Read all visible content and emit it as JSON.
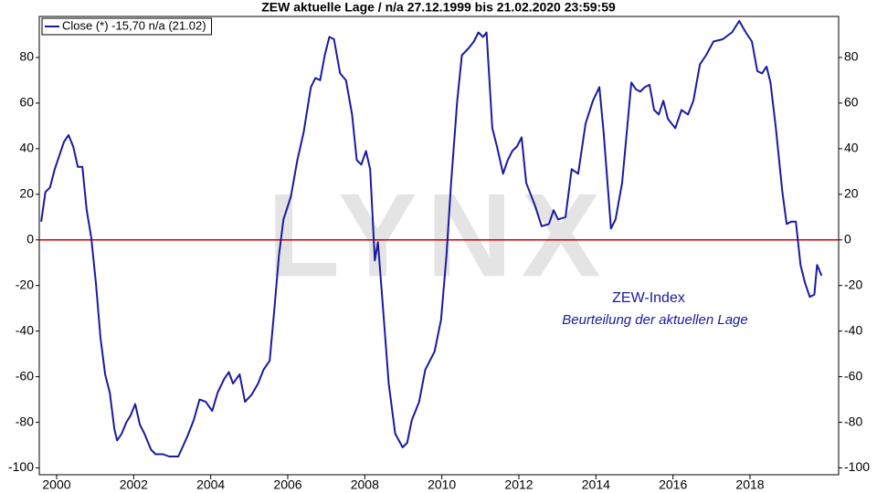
{
  "chart_data": {
    "type": "line",
    "title": "ZEW aktuelle Lage / n/a 27.12.1999 bis 21.02.2020 23:59:59",
    "watermark": "LYNX",
    "annotations": [
      "ZEW-Index",
      "Beurteilung der aktuellen Lage"
    ],
    "x": [
      1999.6,
      1999.71,
      1999.83,
      1999.95,
      2000.19,
      2000.31,
      2000.43,
      2000.55,
      2000.67,
      2000.78,
      2000.9,
      2001.02,
      2001.14,
      2001.26,
      2001.38,
      2001.5,
      2001.57,
      2001.69,
      2001.81,
      2001.92,
      2002.04,
      2002.16,
      2002.28,
      2002.45,
      2002.57,
      2002.76,
      2002.92,
      2003.16,
      2003.4,
      2003.56,
      2003.71,
      2003.87,
      2004.04,
      2004.18,
      2004.35,
      2004.47,
      2004.58,
      2004.75,
      2004.89,
      2005.06,
      2005.23,
      2005.37,
      2005.53,
      2005.65,
      2005.77,
      2005.89,
      2006.08,
      2006.25,
      2006.41,
      2006.6,
      2006.72,
      2006.84,
      2006.96,
      2007.08,
      2007.2,
      2007.36,
      2007.51,
      2007.67,
      2007.79,
      2007.91,
      2008.03,
      2008.14,
      2008.26,
      2008.34,
      2008.46,
      2008.62,
      2008.79,
      2008.98,
      2009.1,
      2009.22,
      2009.41,
      2009.57,
      2009.81,
      2009.98,
      2010.12,
      2010.24,
      2010.4,
      2010.52,
      2010.69,
      2010.83,
      2010.95,
      2011.07,
      2011.16,
      2011.31,
      2011.43,
      2011.59,
      2011.71,
      2011.83,
      2011.95,
      2012.07,
      2012.19,
      2012.42,
      2012.59,
      2012.78,
      2012.9,
      2013.02,
      2013.21,
      2013.37,
      2013.54,
      2013.73,
      2013.92,
      2014.09,
      2014.2,
      2014.39,
      2014.51,
      2014.68,
      2014.92,
      2015.04,
      2015.15,
      2015.27,
      2015.39,
      2015.51,
      2015.63,
      2015.75,
      2015.87,
      2016.06,
      2016.22,
      2016.39,
      2016.53,
      2016.7,
      2016.86,
      2017.05,
      2017.29,
      2017.53,
      2017.72,
      2017.89,
      2018.05,
      2018.19,
      2018.31,
      2018.43,
      2018.53,
      2018.67,
      2018.84,
      2018.95,
      2019.07,
      2019.19,
      2019.31,
      2019.43,
      2019.55,
      2019.67,
      2019.74,
      2019.86
    ],
    "series": [
      {
        "name": "Close (*) -15,70 n/a (21.02)",
        "color": "#1a1aa0",
        "values": [
          8,
          21,
          23,
          31,
          43,
          46,
          41,
          32,
          32,
          13,
          1,
          -19,
          -43,
          -59,
          -67,
          -83,
          -88,
          -85,
          -80,
          -77,
          -72,
          -81,
          -85,
          -92,
          -94,
          -94,
          -95,
          -95,
          -86,
          -79,
          -70,
          -71,
          -75,
          -67,
          -61,
          -58,
          -63,
          -59,
          -71,
          -68,
          -63,
          -57,
          -53,
          -31,
          -7,
          9,
          19,
          35,
          47,
          67,
          71,
          70,
          81,
          89,
          88,
          73,
          70,
          55,
          35,
          33,
          39,
          31,
          -9,
          -1,
          -27,
          -63,
          -85,
          -91,
          -89,
          -79,
          -71,
          -57,
          -49,
          -35,
          -7,
          25,
          61,
          81,
          84,
          87,
          91,
          89,
          91,
          49,
          41,
          29,
          35,
          39,
          41,
          45,
          25,
          15,
          6,
          7,
          13,
          9,
          10,
          31,
          29,
          51,
          61,
          67,
          47,
          5,
          9,
          25,
          69,
          66,
          65,
          67,
          68,
          57,
          55,
          61,
          53,
          49,
          57,
          55,
          61,
          77,
          81,
          87,
          88,
          91,
          96,
          91,
          87,
          74,
          73,
          76,
          69,
          49,
          21,
          7,
          8,
          8,
          -11,
          -19,
          -25,
          -24,
          -11,
          -15.7
        ]
      }
    ],
    "reference_line": {
      "value": 0,
      "color": "#cc0000"
    },
    "xlim": [
      1999.55,
      2020.3
    ],
    "xticks": [
      2000,
      2002,
      2004,
      2006,
      2008,
      2010,
      2012,
      2014,
      2016,
      2018
    ],
    "ylim": [
      -103,
      98
    ],
    "yticks": [
      -100,
      -80,
      -60,
      -40,
      -20,
      0,
      20,
      40,
      60,
      80
    ],
    "grid": false,
    "legend": "top-left"
  }
}
